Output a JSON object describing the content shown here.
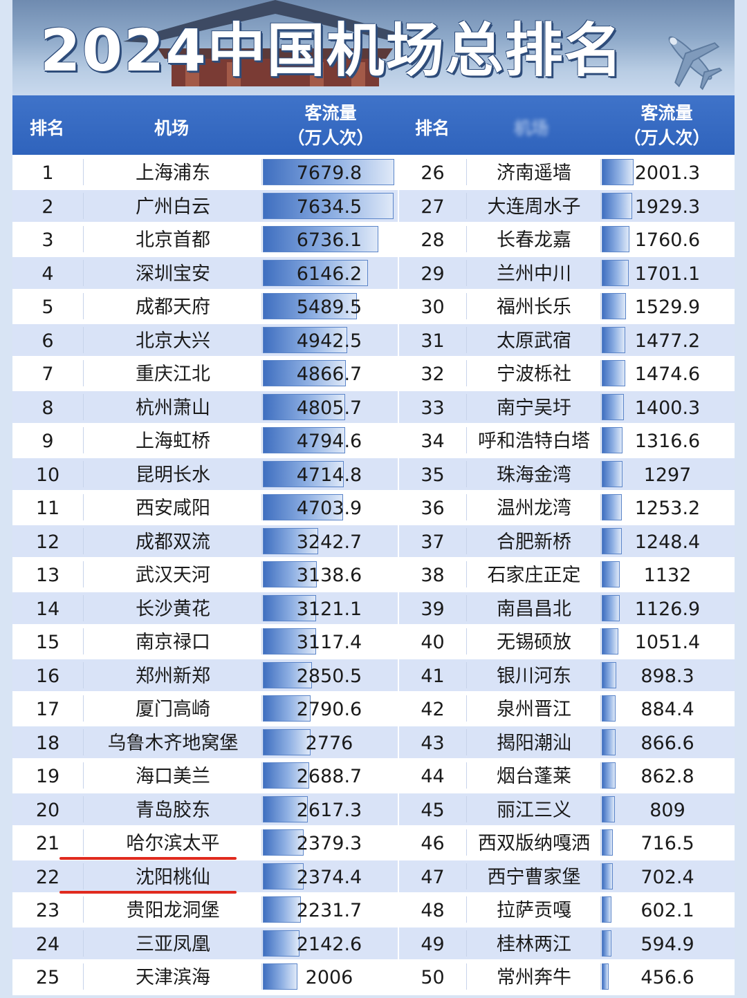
{
  "title": "2024中国机场总排名",
  "plane_icon": "airplane-emoji-icon",
  "colors": {
    "header_bg": "#3566c0",
    "row_alt": "#d9e3f7",
    "bar": "#4a78c6",
    "highlight_underline": "#e02a1e"
  },
  "headers": {
    "left": {
      "rank": "排名",
      "airport": "机场",
      "traffic_line1": "客流量",
      "traffic_line2": "（万人次）"
    },
    "right": {
      "rank": "排名",
      "airport": "机场",
      "traffic_line1": "客流量",
      "traffic_line2": "（万人次）"
    }
  },
  "chart_data": {
    "type": "table",
    "title": "2024中国机场总排名",
    "columns": [
      "排名",
      "机场",
      "客流量（万人次）"
    ],
    "rows": [
      {
        "rank": "1",
        "airport": "上海浦东",
        "traffic": "7679.8"
      },
      {
        "rank": "2",
        "airport": "广州白云",
        "traffic": "7634.5"
      },
      {
        "rank": "3",
        "airport": "北京首都",
        "traffic": "6736.1"
      },
      {
        "rank": "4",
        "airport": "深圳宝安",
        "traffic": "6146.2"
      },
      {
        "rank": "5",
        "airport": "成都天府",
        "traffic": "5489.5"
      },
      {
        "rank": "6",
        "airport": "北京大兴",
        "traffic": "4942.5"
      },
      {
        "rank": "7",
        "airport": "重庆江北",
        "traffic": "4866.7"
      },
      {
        "rank": "8",
        "airport": "杭州萧山",
        "traffic": "4805.7"
      },
      {
        "rank": "9",
        "airport": "上海虹桥",
        "traffic": "4794.6"
      },
      {
        "rank": "10",
        "airport": "昆明长水",
        "traffic": "4714.8"
      },
      {
        "rank": "11",
        "airport": "西安咸阳",
        "traffic": "4703.9"
      },
      {
        "rank": "12",
        "airport": "成都双流",
        "traffic": "3242.7"
      },
      {
        "rank": "13",
        "airport": "武汉天河",
        "traffic": "3138.6"
      },
      {
        "rank": "14",
        "airport": "长沙黄花",
        "traffic": "3121.1"
      },
      {
        "rank": "15",
        "airport": "南京禄口",
        "traffic": "3117.4"
      },
      {
        "rank": "16",
        "airport": "郑州新郑",
        "traffic": "2850.5"
      },
      {
        "rank": "17",
        "airport": "厦门高崎",
        "traffic": "2790.6"
      },
      {
        "rank": "18",
        "airport": "乌鲁木齐地窝堡",
        "traffic": "2776"
      },
      {
        "rank": "19",
        "airport": "海口美兰",
        "traffic": "2688.7"
      },
      {
        "rank": "20",
        "airport": "青岛胶东",
        "traffic": "2617.3"
      },
      {
        "rank": "21",
        "airport": "哈尔滨太平",
        "traffic": "2379.3",
        "underlined": true
      },
      {
        "rank": "22",
        "airport": "沈阳桃仙",
        "traffic": "2374.4",
        "underlined": true
      },
      {
        "rank": "23",
        "airport": "贵阳龙洞堡",
        "traffic": "2231.7"
      },
      {
        "rank": "24",
        "airport": "三亚凤凰",
        "traffic": "2142.6"
      },
      {
        "rank": "25",
        "airport": "天津滨海",
        "traffic": "2006"
      },
      {
        "rank": "26",
        "airport": "济南遥墙",
        "traffic": "2001.3"
      },
      {
        "rank": "27",
        "airport": "大连周水子",
        "traffic": "1929.3"
      },
      {
        "rank": "28",
        "airport": "长春龙嘉",
        "traffic": "1760.6"
      },
      {
        "rank": "29",
        "airport": "兰州中川",
        "traffic": "1701.1"
      },
      {
        "rank": "30",
        "airport": "福州长乐",
        "traffic": "1529.9"
      },
      {
        "rank": "31",
        "airport": "太原武宿",
        "traffic": "1477.2"
      },
      {
        "rank": "32",
        "airport": "宁波栎社",
        "traffic": "1474.6"
      },
      {
        "rank": "33",
        "airport": "南宁吴圩",
        "traffic": "1400.3"
      },
      {
        "rank": "34",
        "airport": "呼和浩特白塔",
        "traffic": "1316.6"
      },
      {
        "rank": "35",
        "airport": "珠海金湾",
        "traffic": "1297"
      },
      {
        "rank": "36",
        "airport": "温州龙湾",
        "traffic": "1253.2"
      },
      {
        "rank": "37",
        "airport": "合肥新桥",
        "traffic": "1248.4"
      },
      {
        "rank": "38",
        "airport": "石家庄正定",
        "traffic": "1132"
      },
      {
        "rank": "39",
        "airport": "南昌昌北",
        "traffic": "1126.9"
      },
      {
        "rank": "40",
        "airport": "无锡硕放",
        "traffic": "1051.4"
      },
      {
        "rank": "41",
        "airport": "银川河东",
        "traffic": "898.3"
      },
      {
        "rank": "42",
        "airport": "泉州晋江",
        "traffic": "884.4"
      },
      {
        "rank": "43",
        "airport": "揭阳潮汕",
        "traffic": "866.6"
      },
      {
        "rank": "44",
        "airport": "烟台蓬莱",
        "traffic": "862.8"
      },
      {
        "rank": "45",
        "airport": "丽江三义",
        "traffic": "809"
      },
      {
        "rank": "46",
        "airport": "西双版纳嘎洒",
        "traffic": "716.5"
      },
      {
        "rank": "47",
        "airport": "西宁曹家堡",
        "traffic": "702.4"
      },
      {
        "rank": "48",
        "airport": "拉萨贡嘎",
        "traffic": "602.1"
      },
      {
        "rank": "49",
        "airport": "桂林两江",
        "traffic": "594.9"
      },
      {
        "rank": "50",
        "airport": "常州奔牛",
        "traffic": "456.6"
      }
    ]
  }
}
